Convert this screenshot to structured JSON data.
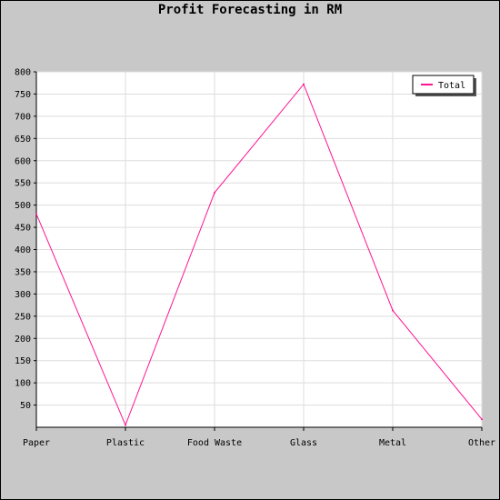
{
  "chart_data": {
    "type": "line",
    "title": "Profit Forecasting in RM",
    "categories": [
      "Paper",
      "Plastic",
      "Food Waste",
      "Glass",
      "Metal",
      "Other"
    ],
    "series": [
      {
        "name": "Total",
        "values": [
          480,
          5,
          528,
          772,
          263,
          18
        ],
        "color": "#ff1493"
      }
    ],
    "ylim": [
      0,
      800
    ],
    "yticks": [
      50,
      100,
      150,
      200,
      250,
      300,
      350,
      400,
      450,
      500,
      550,
      600,
      650,
      700,
      750,
      800
    ],
    "grid": true,
    "legend_position": "top-right"
  }
}
